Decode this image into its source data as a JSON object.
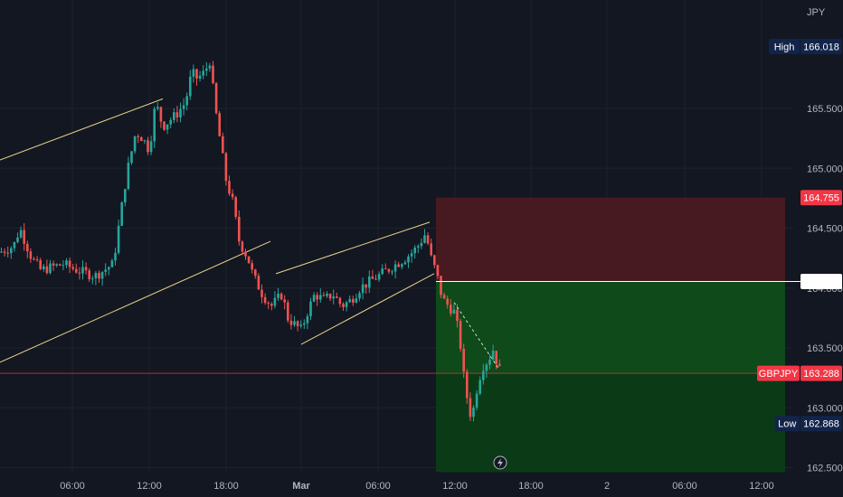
{
  "chart_data": {
    "type": "candlestick",
    "symbol": "GBPJPY",
    "currency": "JPY",
    "colors": {
      "background": "#131722",
      "grid": "#1e222d",
      "up": "#26a69a",
      "down": "#ef5350",
      "trendline": "#e8d28a",
      "stop_zone": "#4a1a22",
      "target_zone": "#0e4d1a",
      "high_low_badge": "#13244a",
      "price_badge": "#f23645",
      "entry_line": "#ffffff"
    },
    "y_axis": {
      "min": 162.45,
      "max": 166.3,
      "ticks": [
        {
          "value": 162.5,
          "label": "162.500"
        },
        {
          "value": 163.0,
          "label": "163.000"
        },
        {
          "value": 163.5,
          "label": "163.500"
        },
        {
          "value": 164.0,
          "label": "164.000"
        },
        {
          "value": 164.5,
          "label": "164.500"
        },
        {
          "value": 165.0,
          "label": "165.000"
        },
        {
          "value": 165.5,
          "label": "165.500"
        }
      ]
    },
    "x_axis": {
      "min": 0,
      "max": 860,
      "ticks": [
        {
          "value": 80,
          "label": "06:00"
        },
        {
          "value": 165,
          "label": "12:00"
        },
        {
          "value": 250,
          "label": "18:00"
        },
        {
          "value": 333,
          "label": "Mar"
        },
        {
          "value": 418,
          "label": "06:00"
        },
        {
          "value": 503,
          "label": "12:00"
        },
        {
          "value": 587,
          "label": "18:00"
        },
        {
          "value": 671,
          "label": "2"
        },
        {
          "value": 757,
          "label": "06:00"
        },
        {
          "value": 842,
          "label": "12:00"
        }
      ]
    },
    "high": {
      "label": "High",
      "value": "166.018"
    },
    "low": {
      "label": "Low",
      "value": "162.868"
    },
    "last_price": {
      "label": "GBPJPY",
      "value": "163.288",
      "price": 163.288
    },
    "stop_price": {
      "label": "164.755",
      "price": 164.755
    },
    "entry_price": {
      "label": "164.055",
      "price": 164.055
    },
    "position": {
      "x_start": 482,
      "x_end": 868,
      "target_price": 162.5
    },
    "key_points": [
      [
        0,
        164.3
      ],
      [
        15,
        164.35
      ],
      [
        22,
        164.5
      ],
      [
        35,
        164.25
      ],
      [
        45,
        164.15
      ],
      [
        70,
        164.2
      ],
      [
        85,
        164.15
      ],
      [
        105,
        164.1
      ],
      [
        125,
        164.2
      ],
      [
        133,
        164.6
      ],
      [
        140,
        164.95
      ],
      [
        150,
        165.3
      ],
      [
        158,
        165.25
      ],
      [
        165,
        165.15
      ],
      [
        172,
        165.55
      ],
      [
        180,
        165.35
      ],
      [
        195,
        165.45
      ],
      [
        205,
        165.55
      ],
      [
        212,
        165.8
      ],
      [
        218,
        165.75
      ],
      [
        226,
        165.8
      ],
      [
        232,
        165.9
      ],
      [
        238,
        165.5
      ],
      [
        244,
        165.2
      ],
      [
        250,
        164.9
      ],
      [
        258,
        164.7
      ],
      [
        264,
        164.4
      ],
      [
        274,
        164.25
      ],
      [
        280,
        164.1
      ],
      [
        290,
        163.95
      ],
      [
        300,
        163.85
      ],
      [
        312,
        163.95
      ],
      [
        318,
        163.75
      ],
      [
        325,
        163.7
      ],
      [
        333,
        163.65
      ],
      [
        340,
        163.8
      ],
      [
        348,
        163.95
      ],
      [
        358,
        163.9
      ],
      [
        368,
        163.95
      ],
      [
        378,
        163.85
      ],
      [
        388,
        163.9
      ],
      [
        398,
        164.0
      ],
      [
        408,
        164.05
      ],
      [
        418,
        164.1
      ],
      [
        428,
        164.15
      ],
      [
        438,
        164.2
      ],
      [
        448,
        164.25
      ],
      [
        456,
        164.3
      ],
      [
        462,
        164.35
      ],
      [
        466,
        164.4
      ],
      [
        470,
        164.45
      ],
      [
        474,
        164.35
      ],
      [
        478,
        164.2
      ],
      [
        482,
        164.15
      ],
      [
        486,
        164.0
      ],
      [
        490,
        163.9
      ],
      [
        496,
        163.85
      ],
      [
        502,
        163.8
      ],
      [
        508,
        163.6
      ],
      [
        512,
        163.3
      ],
      [
        516,
        163.1
      ],
      [
        520,
        162.95
      ],
      [
        524,
        163.0
      ],
      [
        528,
        163.2
      ],
      [
        534,
        163.35
      ],
      [
        540,
        163.4
      ],
      [
        546,
        163.5
      ],
      [
        550,
        163.35
      ],
      [
        554,
        163.288
      ]
    ],
    "trendlines": [
      {
        "x1": 0,
        "y1": 165.07,
        "x2": 180,
        "y2": 165.58
      },
      {
        "x1": 0,
        "y1": 163.38,
        "x2": 299,
        "y2": 164.39
      },
      {
        "x1": 305,
        "y1": 164.12,
        "x2": 475,
        "y2": 164.55
      },
      {
        "x1": 333,
        "y1": 163.53,
        "x2": 480,
        "y2": 164.12
      }
    ],
    "projection": {
      "x1": 502,
      "y1": 163.88,
      "x2": 552,
      "y2": 163.32
    }
  }
}
